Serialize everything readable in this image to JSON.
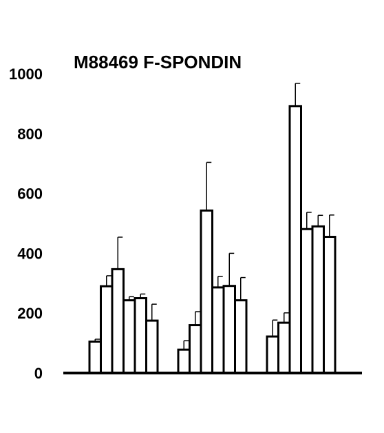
{
  "chart_data": {
    "type": "bar",
    "title": "M88469 F-SPONDIN",
    "xlabel": "",
    "ylabel": "",
    "ylim": [
      0,
      1000
    ],
    "yticks": [
      0,
      200,
      400,
      600,
      800,
      1000
    ],
    "grid": false,
    "error_bars": true,
    "bar_fill": "#ffffff",
    "bar_stroke": "#000000",
    "groups": [
      {
        "values": [
          105,
          290,
          347,
          243,
          250,
          175
        ],
        "errors": [
          8,
          35,
          107,
          12,
          14,
          55
        ]
      },
      {
        "values": [
          78,
          160,
          543,
          286,
          291,
          243
        ],
        "errors": [
          30,
          45,
          161,
          37,
          109,
          76
        ]
      },
      {
        "values": [
          122,
          168,
          892,
          481,
          490,
          455
        ],
        "errors": [
          55,
          33,
          76,
          56,
          37,
          73
        ]
      }
    ]
  }
}
